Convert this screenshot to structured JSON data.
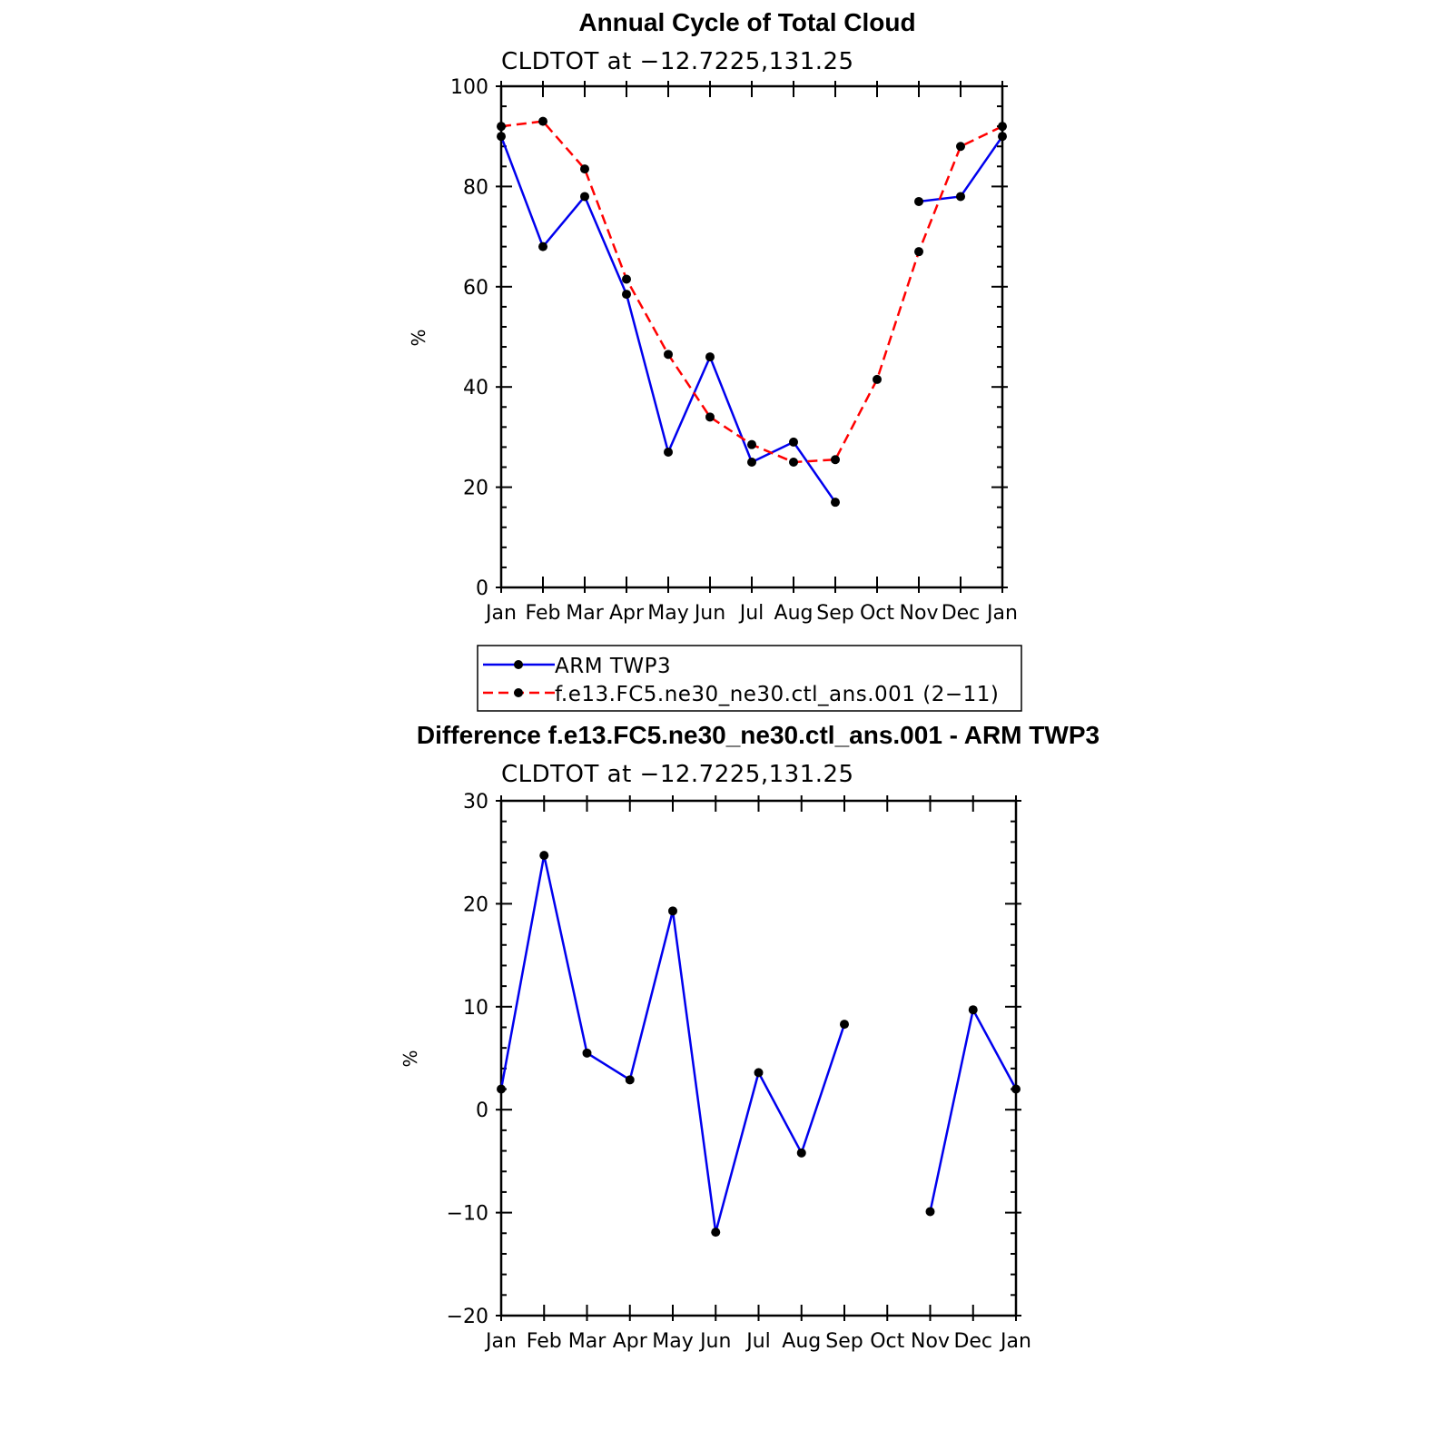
{
  "chart_data": [
    {
      "type": "line",
      "title": "Annual Cycle of Total Cloud",
      "subtitle": "CLDTOT at −12.7225,131.25",
      "ylabel": "%",
      "xlabel": "",
      "ylim": [
        0,
        100
      ],
      "yticks": [
        0,
        20,
        40,
        60,
        80,
        100
      ],
      "categories": [
        "Jan",
        "Feb",
        "Mar",
        "Apr",
        "May",
        "Jun",
        "Jul",
        "Aug",
        "Sep",
        "Oct",
        "Nov",
        "Dec",
        "Jan"
      ],
      "series": [
        {
          "name": "ARM TWP3",
          "color": "#0000ee",
          "dash": "solid",
          "values": [
            90,
            68,
            78,
            58.5,
            27,
            46,
            25,
            29,
            17,
            null,
            77,
            78,
            90
          ]
        },
        {
          "name": "f.e13.FC5.ne30_ne30.ctl_ans.001 (2−11)",
          "color": "#ff0000",
          "dash": "dashed",
          "values": [
            92,
            93,
            83.5,
            61.5,
            46.5,
            34,
            28.5,
            25,
            25.5,
            41.5,
            67,
            88,
            92
          ]
        }
      ]
    },
    {
      "type": "line",
      "title": "Difference f.e13.FC5.ne30_ne30.ctl_ans.001 - ARM TWP3",
      "subtitle": "CLDTOT at −12.7225,131.25",
      "ylabel": "%",
      "xlabel": "",
      "ylim": [
        -20,
        30
      ],
      "yticks": [
        -20,
        -10,
        0,
        10,
        20,
        30
      ],
      "categories": [
        "Jan",
        "Feb",
        "Mar",
        "Apr",
        "May",
        "Jun",
        "Jul",
        "Aug",
        "Sep",
        "Oct",
        "Nov",
        "Dec",
        "Jan"
      ],
      "series": [
        {
          "name": "Difference",
          "color": "#0000ee",
          "dash": "solid",
          "values": [
            2,
            24.7,
            5.5,
            2.9,
            19.3,
            -11.9,
            3.6,
            -4.2,
            8.3,
            null,
            -9.9,
            9.7,
            2
          ]
        }
      ]
    }
  ]
}
